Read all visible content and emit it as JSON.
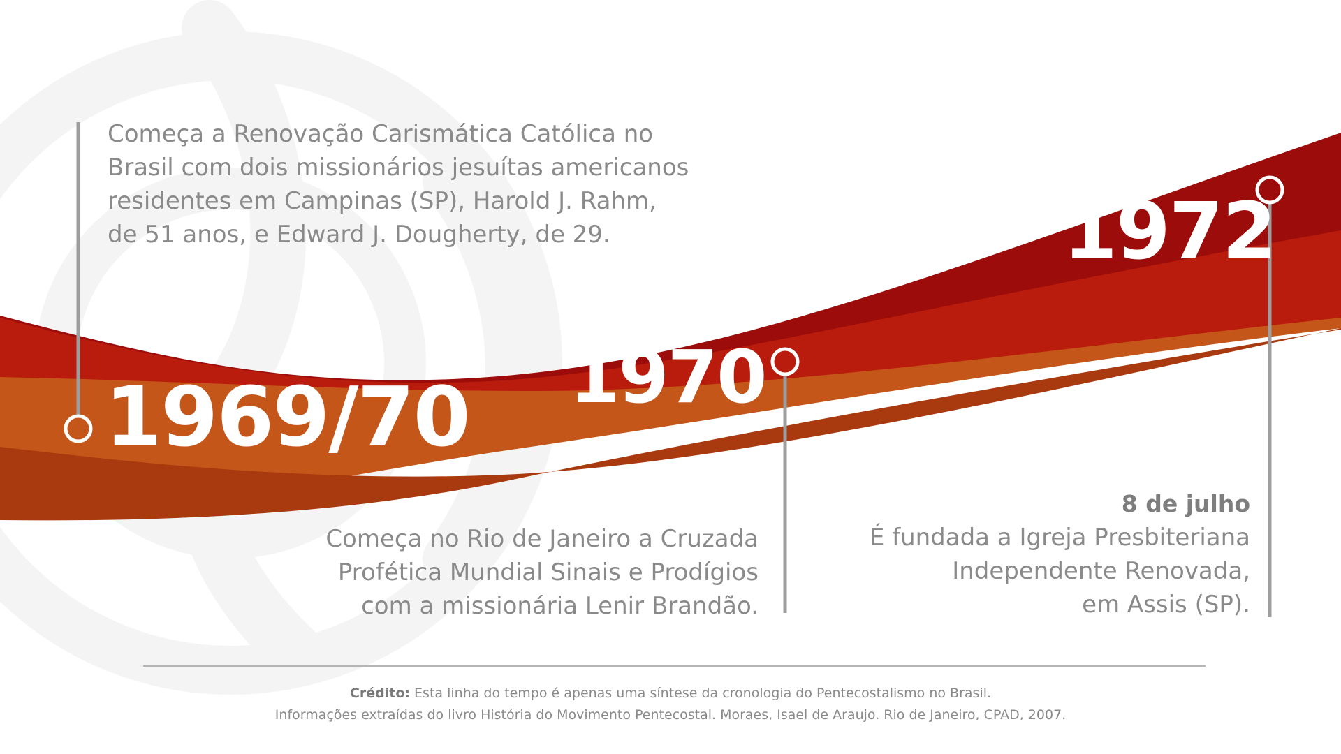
{
  "colors": {
    "ribbon_dark_red": "#9c0c0a",
    "ribbon_red": "#b81c0c",
    "ribbon_orange": "#c2581a",
    "ribbon_dark_orange": "#a93a10",
    "connector_gray": "#9e9e9e",
    "text_gray": "#8a8a8a",
    "watermark_gray": "#f3f3f3"
  },
  "events": [
    {
      "year": "1969/70",
      "lines": [
        "Começa a Renovação Carismática Católica no",
        "Brasil com dois missionários jesuítas americanos",
        "residentes em Campinas (SP), Harold J. Rahm,",
        "de 51 anos, e Edward J. Dougherty, de 29."
      ]
    },
    {
      "year": "1970",
      "lines": [
        "Começa no Rio de Janeiro a Cruzada",
        "Profética Mundial Sinais e Prodígios",
        "com a missionária Lenir Brandão."
      ]
    },
    {
      "year": "1972",
      "date": "8 de julho",
      "lines": [
        "É fundada a Igreja Presbiteriana",
        "Independente Renovada,",
        "em Assis (SP)."
      ]
    }
  ],
  "credit": {
    "label": "Crédito:",
    "text": " Esta linha do tempo é apenas uma síntese da cronologia do Pentecostalismo no Brasil.",
    "line2": "Informações extraídas do livro História do Movimento Pentecostal. Moraes, Isael de Araujo. Rio de Janeiro, CPAD, 2007."
  }
}
